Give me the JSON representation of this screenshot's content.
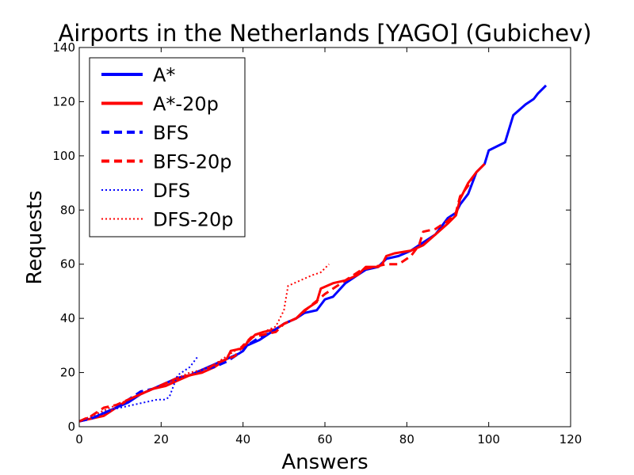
{
  "chart_data": {
    "type": "line",
    "title": "Airports in the Netherlands [YAGO] (Gubichev)",
    "xlabel": "Answers",
    "ylabel": "Requests",
    "xlim": [
      0,
      120
    ],
    "ylim": [
      0,
      140
    ],
    "xticks": [
      0,
      20,
      40,
      60,
      80,
      100,
      120
    ],
    "yticks": [
      0,
      20,
      40,
      60,
      80,
      100,
      120,
      140
    ],
    "grid": false,
    "legend_position": "top-left",
    "series": [
      {
        "name": "A*",
        "color": "#0000ff",
        "dash": "solid",
        "points": [
          [
            0,
            2
          ],
          [
            3,
            3
          ],
          [
            6,
            5
          ],
          [
            9,
            7
          ],
          [
            12,
            9
          ],
          [
            15,
            12
          ],
          [
            18,
            14
          ],
          [
            21,
            16
          ],
          [
            24,
            18
          ],
          [
            27,
            19
          ],
          [
            30,
            21
          ],
          [
            33,
            23
          ],
          [
            36,
            25
          ],
          [
            39,
            27
          ],
          [
            40,
            28
          ],
          [
            41,
            30
          ],
          [
            44,
            32
          ],
          [
            47,
            35
          ],
          [
            50,
            38
          ],
          [
            53,
            40
          ],
          [
            55,
            42
          ],
          [
            58,
            43
          ],
          [
            60,
            47
          ],
          [
            62,
            48
          ],
          [
            65,
            53
          ],
          [
            68,
            56
          ],
          [
            70,
            58
          ],
          [
            73,
            59
          ],
          [
            75,
            62
          ],
          [
            78,
            63
          ],
          [
            81,
            65
          ],
          [
            84,
            68
          ],
          [
            87,
            71
          ],
          [
            90,
            77
          ],
          [
            92,
            79
          ],
          [
            93,
            82
          ],
          [
            95,
            86
          ],
          [
            96,
            90
          ],
          [
            97,
            94
          ],
          [
            99,
            97
          ],
          [
            100,
            102
          ],
          [
            104,
            105
          ],
          [
            106,
            115
          ],
          [
            109,
            119
          ],
          [
            111,
            121
          ],
          [
            112,
            123
          ],
          [
            114,
            126
          ]
        ]
      },
      {
        "name": "A*-20p",
        "color": "#ff0000",
        "dash": "solid",
        "points": [
          [
            0,
            2
          ],
          [
            3,
            3
          ],
          [
            6,
            4
          ],
          [
            9,
            7
          ],
          [
            12,
            10
          ],
          [
            15,
            12
          ],
          [
            18,
            14
          ],
          [
            21,
            15
          ],
          [
            24,
            17
          ],
          [
            27,
            19
          ],
          [
            30,
            20
          ],
          [
            33,
            22
          ],
          [
            36,
            25
          ],
          [
            37,
            28
          ],
          [
            40,
            29
          ],
          [
            41,
            31
          ],
          [
            43,
            34
          ],
          [
            45,
            35
          ],
          [
            48,
            36
          ],
          [
            50,
            38
          ],
          [
            53,
            40
          ],
          [
            55,
            43
          ],
          [
            58,
            46
          ],
          [
            59,
            51
          ],
          [
            62,
            53
          ],
          [
            65,
            54
          ],
          [
            68,
            56
          ],
          [
            70,
            59
          ],
          [
            73,
            59
          ],
          [
            74,
            60
          ],
          [
            75,
            63
          ],
          [
            77,
            64
          ],
          [
            81,
            65
          ],
          [
            84,
            67
          ],
          [
            87,
            71
          ],
          [
            90,
            75
          ],
          [
            92,
            78
          ],
          [
            93,
            84
          ],
          [
            95,
            90
          ],
          [
            97,
            94
          ],
          [
            99,
            97
          ]
        ]
      },
      {
        "name": "BFS",
        "color": "#0000ff",
        "dash": "dashed",
        "points": [
          [
            0,
            2
          ],
          [
            3,
            3
          ],
          [
            6,
            5
          ],
          [
            9,
            7
          ],
          [
            12,
            10
          ],
          [
            15,
            13
          ],
          [
            18,
            14
          ],
          [
            21,
            16
          ],
          [
            24,
            18
          ],
          [
            27,
            19
          ],
          [
            30,
            21
          ],
          [
            33,
            22
          ],
          [
            36,
            24
          ],
          [
            39,
            27
          ],
          [
            40,
            28
          ],
          [
            41,
            30
          ],
          [
            44,
            33
          ],
          [
            47,
            35
          ],
          [
            50,
            38
          ],
          [
            53,
            40
          ]
        ]
      },
      {
        "name": "BFS-20p",
        "color": "#ff0000",
        "dash": "dashed",
        "points": [
          [
            0,
            2
          ],
          [
            3,
            4
          ],
          [
            6,
            7
          ],
          [
            9,
            8
          ],
          [
            12,
            10
          ],
          [
            15,
            12
          ],
          [
            18,
            14
          ],
          [
            21,
            16
          ],
          [
            24,
            18
          ],
          [
            27,
            19
          ],
          [
            30,
            20
          ],
          [
            33,
            23
          ],
          [
            36,
            25
          ],
          [
            38,
            26
          ],
          [
            40,
            30
          ],
          [
            42,
            33
          ],
          [
            45,
            34
          ],
          [
            48,
            35
          ],
          [
            50,
            38
          ],
          [
            53,
            40
          ],
          [
            56,
            44
          ],
          [
            60,
            49
          ],
          [
            63,
            52
          ],
          [
            66,
            55
          ],
          [
            69,
            58
          ],
          [
            72,
            59
          ],
          [
            75,
            60
          ],
          [
            78,
            60
          ],
          [
            80,
            62
          ],
          [
            81,
            63
          ],
          [
            83,
            67
          ],
          [
            84,
            72
          ],
          [
            87,
            73
          ],
          [
            90,
            76
          ],
          [
            92,
            79
          ],
          [
            93,
            85
          ],
          [
            95,
            89
          ],
          [
            96,
            92
          ]
        ]
      },
      {
        "name": "DFS",
        "color": "#0000ff",
        "dash": "dotted",
        "points": [
          [
            0,
            2
          ],
          [
            4,
            4
          ],
          [
            7,
            6
          ],
          [
            10,
            7
          ],
          [
            13,
            8
          ],
          [
            16,
            9
          ],
          [
            19,
            10
          ],
          [
            21,
            10
          ],
          [
            22,
            11
          ],
          [
            24,
            19
          ],
          [
            27,
            22
          ],
          [
            29,
            26
          ]
        ]
      },
      {
        "name": "DFS-20p",
        "color": "#ff0000",
        "dash": "dotted",
        "points": [
          [
            0,
            2
          ],
          [
            3,
            4
          ],
          [
            6,
            6
          ],
          [
            9,
            8
          ],
          [
            12,
            10
          ],
          [
            15,
            12
          ],
          [
            18,
            14
          ],
          [
            21,
            16
          ],
          [
            24,
            18
          ],
          [
            27,
            20
          ],
          [
            30,
            21
          ],
          [
            33,
            23
          ],
          [
            36,
            26
          ],
          [
            39,
            29
          ],
          [
            40,
            30
          ],
          [
            42,
            33
          ],
          [
            45,
            35
          ],
          [
            48,
            37
          ],
          [
            49,
            40
          ],
          [
            50,
            43
          ],
          [
            51,
            52
          ],
          [
            54,
            54
          ],
          [
            57,
            56
          ],
          [
            59,
            57
          ],
          [
            61,
            60
          ]
        ]
      }
    ]
  }
}
